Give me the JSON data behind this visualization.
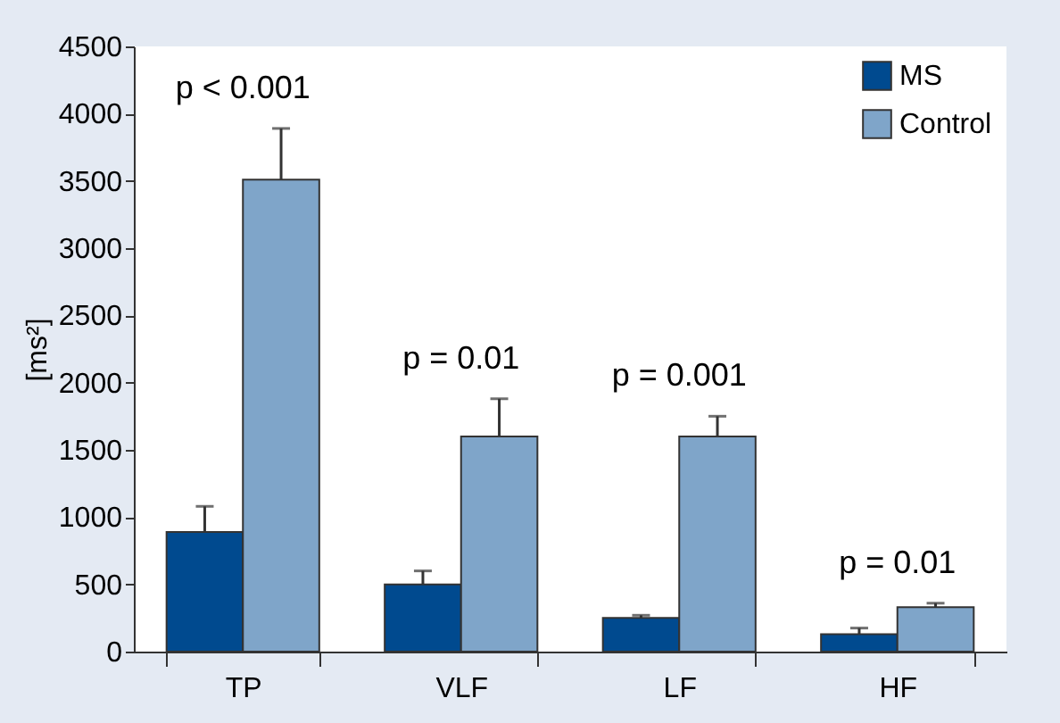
{
  "chart_data": {
    "type": "bar",
    "ylabel": "[ms²]",
    "categories": [
      "TP",
      "VLF",
      "LF",
      "HF"
    ],
    "series": [
      {
        "name": "MS",
        "color": "#004a8f",
        "values": [
          890,
          500,
          250,
          130
        ],
        "errors": [
          [
            890,
            1080
          ],
          [
            500,
            600
          ],
          [
            250,
            270
          ],
          [
            130,
            175
          ]
        ]
      },
      {
        "name": "Control",
        "color": "#7fa5c9",
        "values": [
          3510,
          1600,
          1600,
          330
        ],
        "errors": [
          [
            3510,
            3890
          ],
          [
            1600,
            1880
          ],
          [
            1600,
            1750
          ],
          [
            330,
            360
          ]
        ]
      }
    ],
    "ylim": [
      0,
      4500
    ],
    "yticks": [
      0,
      500,
      1000,
      1500,
      2000,
      2500,
      3000,
      3500,
      4000,
      4500
    ],
    "annotations": [
      "p < 0.001",
      "p = 0.01",
      "p = 0.001",
      "p = 0.01"
    ],
    "grid": false,
    "legend": "top right"
  }
}
